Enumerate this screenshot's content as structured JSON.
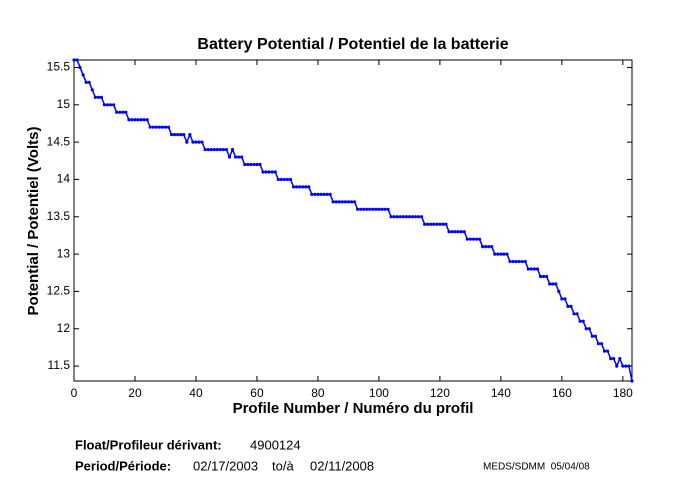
{
  "chart_data": {
    "type": "line",
    "title": "Battery Potential / Potentiel de la batterie",
    "x_label": "Profile Number / Numéro du profil",
    "y_label": "Potential / Potentiel (Volts)",
    "x": [
      0,
      1,
      2,
      3,
      4,
      5,
      6,
      7,
      8,
      9,
      10,
      11,
      12,
      13,
      14,
      15,
      16,
      17,
      18,
      19,
      20,
      21,
      22,
      23,
      24,
      25,
      26,
      27,
      28,
      29,
      30,
      31,
      32,
      33,
      34,
      35,
      36,
      37,
      38,
      39,
      40,
      41,
      42,
      43,
      44,
      45,
      46,
      47,
      48,
      49,
      50,
      51,
      52,
      53,
      54,
      55,
      56,
      57,
      58,
      59,
      60,
      61,
      62,
      63,
      64,
      65,
      66,
      67,
      68,
      69,
      70,
      71,
      72,
      73,
      74,
      75,
      76,
      77,
      78,
      79,
      80,
      81,
      82,
      83,
      84,
      85,
      86,
      87,
      88,
      89,
      90,
      91,
      92,
      93,
      94,
      95,
      96,
      97,
      98,
      99,
      100,
      101,
      102,
      103,
      104,
      105,
      106,
      107,
      108,
      109,
      110,
      111,
      112,
      113,
      114,
      115,
      116,
      117,
      118,
      119,
      120,
      121,
      122,
      123,
      124,
      125,
      126,
      127,
      128,
      129,
      130,
      131,
      132,
      133,
      134,
      135,
      136,
      137,
      138,
      139,
      140,
      141,
      142,
      143,
      144,
      145,
      146,
      147,
      148,
      149,
      150,
      151,
      152,
      153,
      154,
      155,
      156,
      157,
      158,
      159,
      160,
      161,
      162,
      163,
      164,
      165,
      166,
      167,
      168,
      169,
      170,
      171,
      172,
      173,
      174,
      175,
      176,
      177,
      178,
      179,
      180,
      181,
      182,
      183
    ],
    "series": [
      {
        "color": "#0000ff",
        "values": [
          15.6,
          15.6,
          15.5,
          15.4,
          15.3,
          15.3,
          15.2,
          15.1,
          15.1,
          15.1,
          15.0,
          15.0,
          15.0,
          15.0,
          14.9,
          14.9,
          14.9,
          14.9,
          14.8,
          14.8,
          14.8,
          14.8,
          14.8,
          14.8,
          14.8,
          14.7,
          14.7,
          14.7,
          14.7,
          14.7,
          14.7,
          14.7,
          14.6,
          14.6,
          14.6,
          14.6,
          14.6,
          14.5,
          14.6,
          14.5,
          14.5,
          14.5,
          14.5,
          14.4,
          14.4,
          14.4,
          14.4,
          14.4,
          14.4,
          14.4,
          14.4,
          14.3,
          14.4,
          14.3,
          14.3,
          14.3,
          14.2,
          14.2,
          14.2,
          14.2,
          14.2,
          14.2,
          14.1,
          14.1,
          14.1,
          14.1,
          14.1,
          14.0,
          14.0,
          14.0,
          14.0,
          14.0,
          13.9,
          13.9,
          13.9,
          13.9,
          13.9,
          13.9,
          13.8,
          13.8,
          13.8,
          13.8,
          13.8,
          13.8,
          13.8,
          13.7,
          13.7,
          13.7,
          13.7,
          13.7,
          13.7,
          13.7,
          13.7,
          13.6,
          13.6,
          13.6,
          13.6,
          13.6,
          13.6,
          13.6,
          13.6,
          13.6,
          13.6,
          13.6,
          13.5,
          13.5,
          13.5,
          13.5,
          13.5,
          13.5,
          13.5,
          13.5,
          13.5,
          13.5,
          13.5,
          13.4,
          13.4,
          13.4,
          13.4,
          13.4,
          13.4,
          13.4,
          13.4,
          13.3,
          13.3,
          13.3,
          13.3,
          13.3,
          13.3,
          13.2,
          13.2,
          13.2,
          13.2,
          13.2,
          13.1,
          13.1,
          13.1,
          13.1,
          13.0,
          13.0,
          13.0,
          13.0,
          13.0,
          12.9,
          12.9,
          12.9,
          12.9,
          12.9,
          12.9,
          12.8,
          12.8,
          12.8,
          12.8,
          12.7,
          12.7,
          12.7,
          12.6,
          12.6,
          12.6,
          12.5,
          12.4,
          12.4,
          12.3,
          12.3,
          12.2,
          12.2,
          12.1,
          12.1,
          12.0,
          12.0,
          11.9,
          11.9,
          11.8,
          11.8,
          11.7,
          11.7,
          11.6,
          11.6,
          11.5,
          11.6,
          11.5,
          11.5,
          11.5,
          11.3
        ]
      }
    ],
    "xlim": [
      0,
      183
    ],
    "xticks": [
      0,
      20,
      40,
      60,
      80,
      100,
      120,
      140,
      160,
      180
    ],
    "ylim": [
      11.3,
      15.6
    ],
    "yticks": [
      11.5,
      12,
      12.5,
      13,
      13.5,
      14,
      14.5,
      15,
      15.5
    ],
    "grid": false
  },
  "footer": {
    "float_label": "Float/Profileur dérivant:",
    "float_id": "4900124",
    "period_label": "Period/Période:",
    "start": "02/17/2003",
    "to": "to/à",
    "end": "02/11/2008",
    "credit": "MEDS/SDMM  05/04/08"
  }
}
